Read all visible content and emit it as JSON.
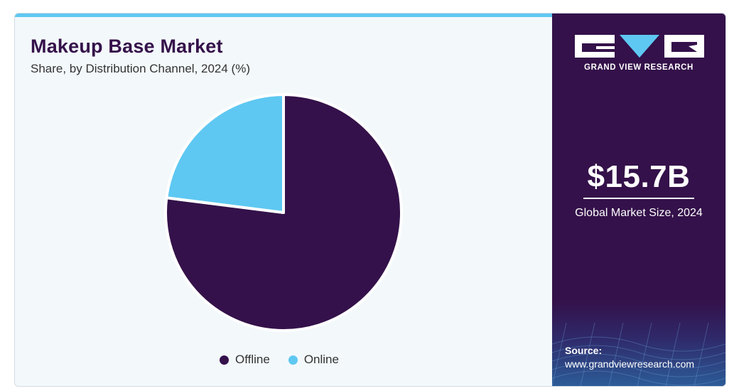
{
  "header": {
    "title": "Makeup Base Market",
    "subtitle": "Share, by Distribution Channel, 2024 (%)"
  },
  "chart_data": {
    "type": "pie",
    "title": "Makeup Base Market",
    "subtitle": "Share, by Distribution Channel, 2024 (%)",
    "legend_position": "bottom",
    "series": [
      {
        "name": "Offline",
        "value": 77,
        "color": "#34114a"
      },
      {
        "name": "Online",
        "value": 23,
        "color": "#5ec8f2"
      }
    ]
  },
  "sidebar": {
    "brand": "GRAND VIEW RESEARCH",
    "market_size_value": "$15.7B",
    "market_size_label": "Global Market Size, 2024",
    "source_label": "Source:",
    "source_url": "www.grandviewresearch.com"
  },
  "colors": {
    "accent_dark": "#34114a",
    "accent_light": "#5ec8f2",
    "background": "#f3f8fb"
  }
}
